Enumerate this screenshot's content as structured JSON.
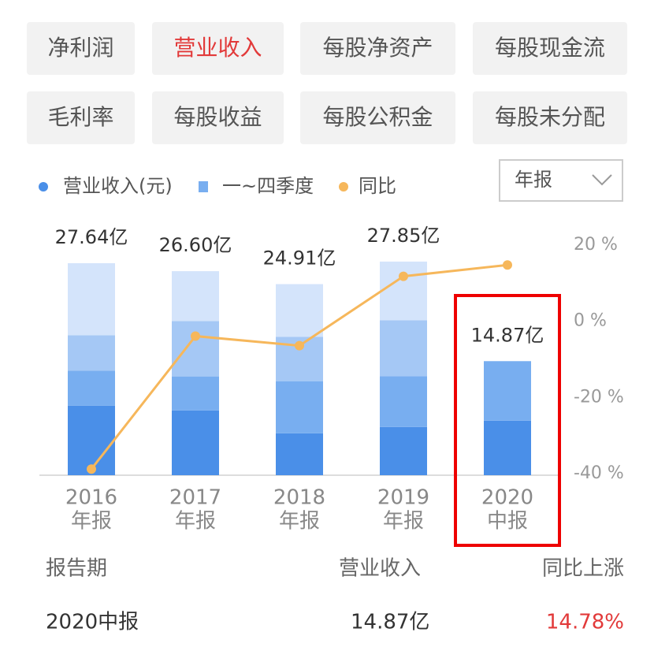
{
  "tabs": [
    "净利润",
    "营业收入",
    "每股净资产",
    "每股现金流",
    "毛利率",
    "每股收益",
    "每股公积金",
    "每股未分配"
  ],
  "active_tab": 1,
  "dropdown": "年报",
  "chart_data": {
    "type": "bar",
    "stacked": true,
    "legend": [
      {
        "name": "营业收入(元)",
        "color": "#4a8fe8",
        "shape": "dot"
      },
      {
        "name": "一~四季度",
        "color": "#78aef0",
        "shape": "square"
      },
      {
        "name": "同比",
        "color": "#f6b75b",
        "shape": "dot"
      }
    ],
    "categories": [
      [
        "2016",
        "年报"
      ],
      [
        "2017",
        "年报"
      ],
      [
        "2018",
        "年报"
      ],
      [
        "2019",
        "年报"
      ],
      [
        "2020",
        "中报"
      ]
    ],
    "series": [
      {
        "color": "#4a8fe8",
        "values": [
          9.07,
          8.45,
          5.46,
          6.29,
          7.11
        ]
      },
      {
        "color": "#78aef0",
        "values": [
          4.54,
          4.43,
          6.8,
          6.6,
          7.76
        ]
      },
      {
        "color": "#a5c8f5",
        "values": [
          4.64,
          7.22,
          5.77,
          7.32,
          null
        ]
      },
      {
        "color": "#d4e4fb",
        "values": [
          9.39,
          6.5,
          6.88,
          7.64,
          null
        ]
      },
      {
        "name": "同比",
        "type": "line",
        "axis": "y2",
        "color": "#f6b75b",
        "values": [
          -38.8,
          -3.9,
          -6.4,
          11.8,
          14.78
        ]
      }
    ],
    "totals": {
      "values": [
        27.64,
        26.6,
        24.91,
        27.85,
        14.87
      ],
      "value_labels": [
        "27.64亿",
        "26.60亿",
        "24.91亿",
        "27.85亿",
        "14.87亿"
      ]
    },
    "ylim": [
      0,
      30
    ],
    "y2lim": [
      -40,
      20
    ],
    "y2ticks": [
      {
        "value": 20,
        "label": "20 %"
      },
      {
        "value": 0,
        "label": "0 %"
      },
      {
        "value": -20,
        "label": "-20 %"
      },
      {
        "value": -40,
        "label": "-40 %"
      }
    ],
    "highlight": 4
  },
  "table": {
    "header": [
      "报告期",
      "营业收入",
      "同比上涨"
    ],
    "rows": [
      [
        "2020中报",
        "14.87亿",
        "14.78%"
      ]
    ]
  }
}
